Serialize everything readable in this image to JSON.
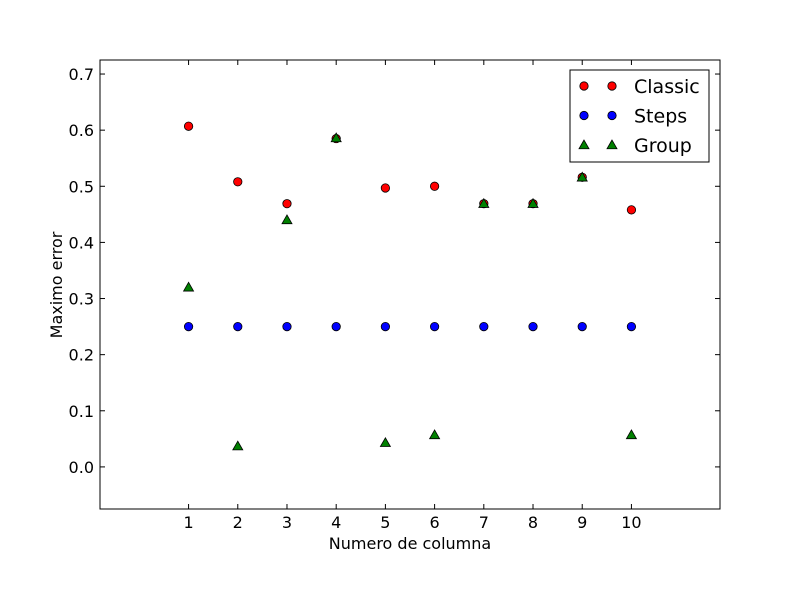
{
  "chart_data": {
    "type": "scatter",
    "title": "",
    "xlabel": "Numero de columna",
    "ylabel": "Maximo error",
    "xlim": [
      -0.8,
      11.8
    ],
    "ylim": [
      -0.075,
      0.725
    ],
    "xticks": [
      1,
      2,
      3,
      4,
      5,
      6,
      7,
      8,
      9,
      10
    ],
    "yticks": [
      0.0,
      0.1,
      0.2,
      0.3,
      0.4,
      0.5,
      0.6,
      0.7
    ],
    "ytick_labels": [
      "0.0",
      "0.1",
      "0.2",
      "0.3",
      "0.4",
      "0.5",
      "0.6",
      "0.7"
    ],
    "grid": false,
    "legend_position": "top-right",
    "x": [
      1,
      2,
      3,
      4,
      5,
      6,
      7,
      8,
      9,
      10
    ],
    "series": [
      {
        "name": "Classic",
        "marker": "circle",
        "color": "#ff0000",
        "values": [
          0.607,
          0.508,
          0.469,
          0.585,
          0.497,
          0.5,
          0.469,
          0.469,
          0.516,
          0.458
        ]
      },
      {
        "name": "Steps",
        "marker": "circle",
        "color": "#0000ff",
        "values": [
          0.25,
          0.25,
          0.25,
          0.25,
          0.25,
          0.25,
          0.25,
          0.25,
          0.25,
          0.25
        ]
      },
      {
        "name": "Group",
        "marker": "triangle",
        "color": "#008000",
        "values": [
          0.32,
          0.037,
          0.44,
          0.586,
          0.043,
          0.057,
          0.469,
          0.469,
          0.516,
          0.057
        ]
      }
    ]
  }
}
